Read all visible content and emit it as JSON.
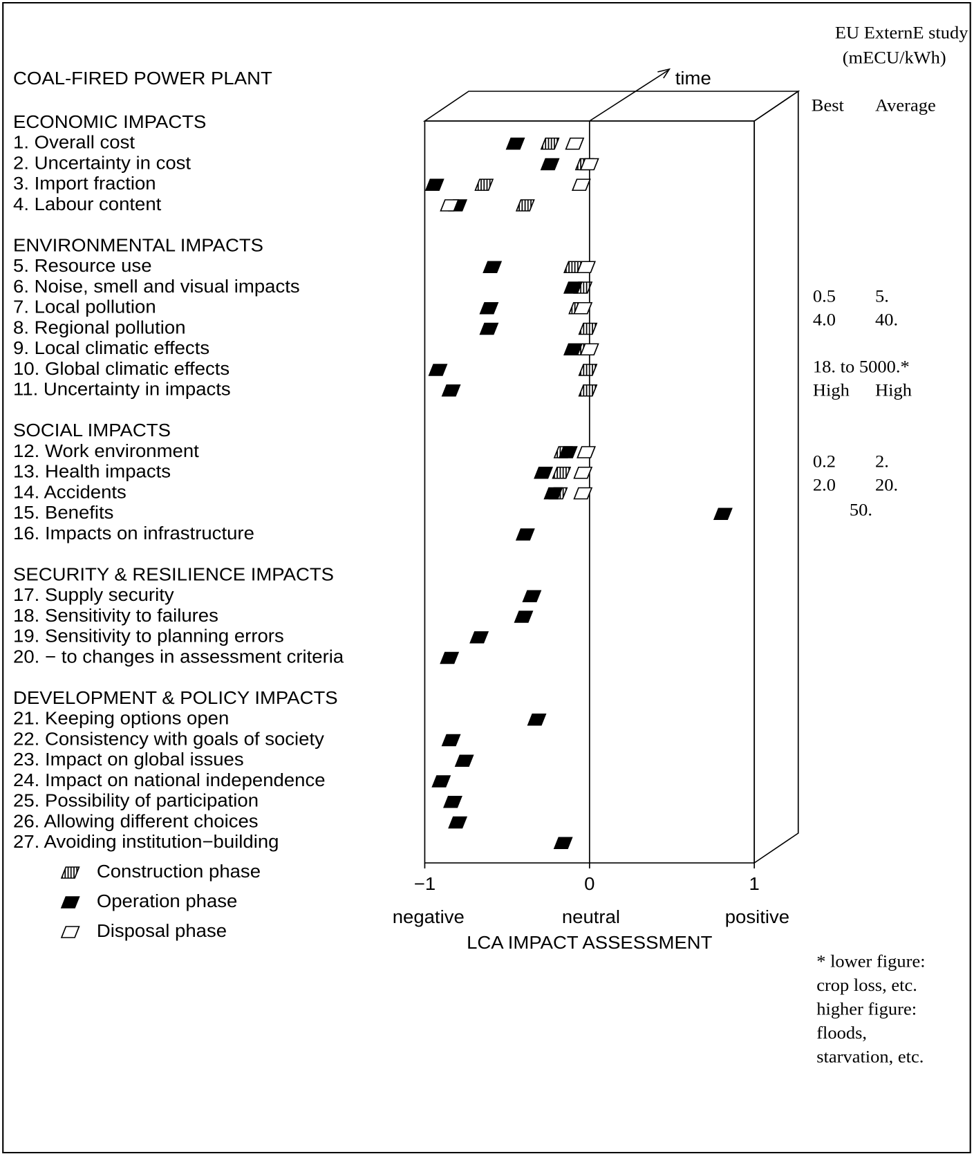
{
  "chart_data": {
    "type": "lca-scatter",
    "title": "COAL-FIRED POWER PLANT",
    "groups": [
      {
        "title": "ECONOMIC IMPACTS",
        "categories": [
          "1. Overall cost",
          "2. Uncertainty in cost",
          "3. Import fraction",
          "4. Labour content"
        ]
      },
      {
        "title": "ENVIRONMENTAL IMPACTS",
        "categories": [
          "5. Resource use",
          "6. Noise, smell and visual impacts",
          "7. Local pollution",
          "8. Regional pollution",
          "9. Local climatic effects",
          "10. Global climatic effects",
          "11. Uncertainty in impacts"
        ]
      },
      {
        "title": "SOCIAL IMPACTS",
        "categories": [
          "12. Work environment",
          "13. Health impacts",
          "14. Accidents",
          "15. Benefits",
          "16. Impacts on infrastructure"
        ]
      },
      {
        "title": "SECURITY & RESILIENCE IMPACTS",
        "categories": [
          "17. Supply security",
          "18. Sensitivity to failures",
          "19. Sensitivity to planning errors",
          "20. − to changes in assessment criteria"
        ]
      },
      {
        "title": "DEVELOPMENT & POLICY IMPACTS",
        "categories": [
          "21. Keeping options open",
          "22. Consistency with goals of society",
          "23. Impact on global issues",
          "24. Impact on national independence",
          "25. Possibility of participation",
          "26. Allowing different choices",
          "27. Avoiding institution−building"
        ]
      }
    ],
    "series": [
      {
        "name": "Construction phase",
        "color": "#000000",
        "fill": "hatched",
        "values": [
          -0.24,
          -0.03,
          -0.64,
          -0.39,
          -0.1,
          -0.04,
          -0.07,
          -0.01,
          -0.02,
          -0.01,
          -0.01,
          -0.16,
          -0.17,
          -0.19,
          null,
          null,
          null,
          null,
          null,
          null,
          null,
          null,
          null,
          null,
          null,
          null,
          null
        ]
      },
      {
        "name": "Operation phase",
        "color": "#000000",
        "fill": "solid",
        "values": [
          -0.45,
          -0.24,
          -0.94,
          -0.8,
          -0.59,
          -0.1,
          -0.61,
          -0.61,
          -0.1,
          -0.92,
          -0.84,
          -0.13,
          -0.28,
          -0.22,
          0.81,
          -0.39,
          -0.35,
          -0.4,
          -0.67,
          -0.85,
          -0.32,
          -0.84,
          -0.76,
          -0.9,
          -0.83,
          -0.8,
          -0.16
        ]
      },
      {
        "name": "Disposal phase",
        "color": "#000000",
        "fill": "open",
        "values": [
          -0.09,
          0.0,
          -0.05,
          -0.85,
          -0.02,
          null,
          -0.04,
          null,
          0.0,
          null,
          null,
          -0.02,
          -0.04,
          -0.04,
          null,
          null,
          null,
          null,
          null,
          null,
          null,
          null,
          null,
          null,
          null,
          null,
          null
        ]
      }
    ],
    "xlim": [
      -1,
      1
    ],
    "xticks": [
      {
        "value": -1,
        "label": "−1"
      },
      0,
      1
    ],
    "x_scale_labels": [
      "negative",
      "neutral",
      "positive"
    ],
    "x_label": "LCA  IMPACT  ASSESSMENT",
    "depth_label": "time",
    "externe": {
      "title": "EU ExternE study",
      "unit": "(mECU/kWh)",
      "columns": [
        "Best",
        "Average"
      ],
      "rows": [
        [
          "0.5",
          "5."
        ],
        [
          "4.0",
          "40."
        ],
        [
          "18. to 5000.*"
        ],
        [
          "High",
          "High"
        ],
        [
          "0.2",
          "2."
        ],
        [
          "2.0",
          "20."
        ],
        [
          "50."
        ]
      ]
    },
    "footnote": [
      "* lower figure:",
      "crop loss, etc.",
      "higher figure:",
      "floods,",
      "starvation, etc."
    ]
  }
}
